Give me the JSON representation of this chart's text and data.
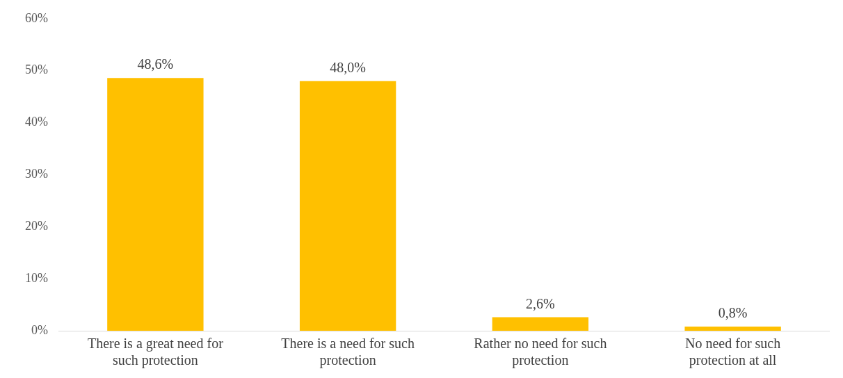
{
  "chart_data": {
    "type": "bar",
    "categories": [
      "There is a great need for such protection",
      "There is a need for such protection",
      "Rather no need for such protection",
      "No need for such protection at all"
    ],
    "values": [
      48.6,
      48.0,
      2.6,
      0.8
    ],
    "value_labels": [
      "48,6%",
      "48,0%",
      "2,6%",
      "0,8%"
    ],
    "color": "#ffc000",
    "ylim": [
      0,
      60
    ],
    "yticks": [
      {
        "value": 0,
        "label": "0%"
      },
      {
        "value": 10,
        "label": "10%"
      },
      {
        "value": 20,
        "label": "20%"
      },
      {
        "value": 30,
        "label": "30%"
      },
      {
        "value": 40,
        "label": "40%"
      },
      {
        "value": 50,
        "label": "50%"
      },
      {
        "value": 60,
        "label": "60%"
      }
    ],
    "grid": false,
    "legend": false
  }
}
